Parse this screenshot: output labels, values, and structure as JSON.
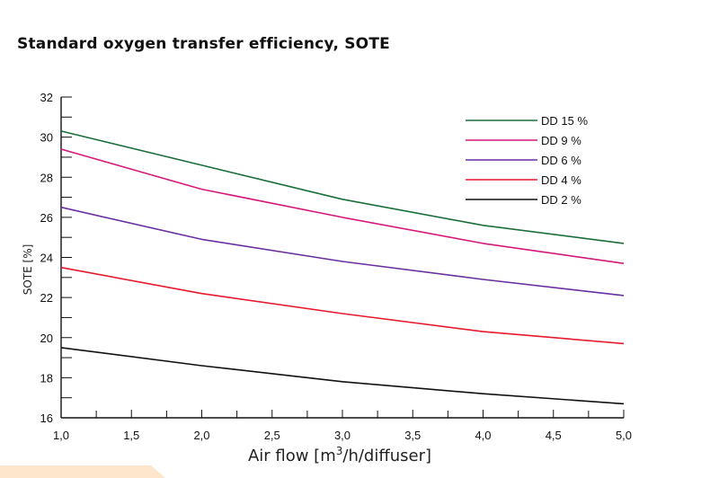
{
  "chart_data": {
    "type": "line",
    "title": "Standard oxygen transfer efficiency, SOTE",
    "xlabel_prefix": "Air flow [m",
    "xlabel_sup": "3",
    "xlabel_suffix": "/h/diffuser]",
    "ylabel": "SOTE [%]",
    "xlim": [
      1.0,
      5.0
    ],
    "ylim": [
      16,
      32
    ],
    "x_ticks": [
      "1,0",
      "1,5",
      "2,0",
      "2,5",
      "3,0",
      "3,5",
      "4,0",
      "4,5",
      "5,0"
    ],
    "y_ticks": [
      "16",
      "18",
      "20",
      "22",
      "24",
      "26",
      "28",
      "30",
      "32"
    ],
    "x": [
      1.0,
      2.0,
      3.0,
      4.0,
      5.0
    ],
    "grid": false,
    "legend_position": "top-right",
    "series": [
      {
        "name": "DD 15 %",
        "color": "#1a6e3a",
        "values": [
          30.3,
          28.6,
          26.9,
          25.6,
          24.7
        ]
      },
      {
        "name": "DD 9 %",
        "color": "#d6187a",
        "values": [
          29.4,
          27.4,
          26.0,
          24.7,
          23.7
        ]
      },
      {
        "name": "DD 6 %",
        "color": "#6a2fa0",
        "values": [
          26.5,
          24.9,
          23.8,
          22.9,
          22.1
        ]
      },
      {
        "name": "DD 4 %",
        "color": "#e8192c",
        "values": [
          23.5,
          22.2,
          21.2,
          20.3,
          19.7
        ]
      },
      {
        "name": "DD 2 %",
        "color": "#111111",
        "values": [
          19.5,
          18.6,
          17.8,
          17.2,
          16.7
        ]
      }
    ]
  },
  "decor": {
    "corner_color": "#fde6cc"
  }
}
